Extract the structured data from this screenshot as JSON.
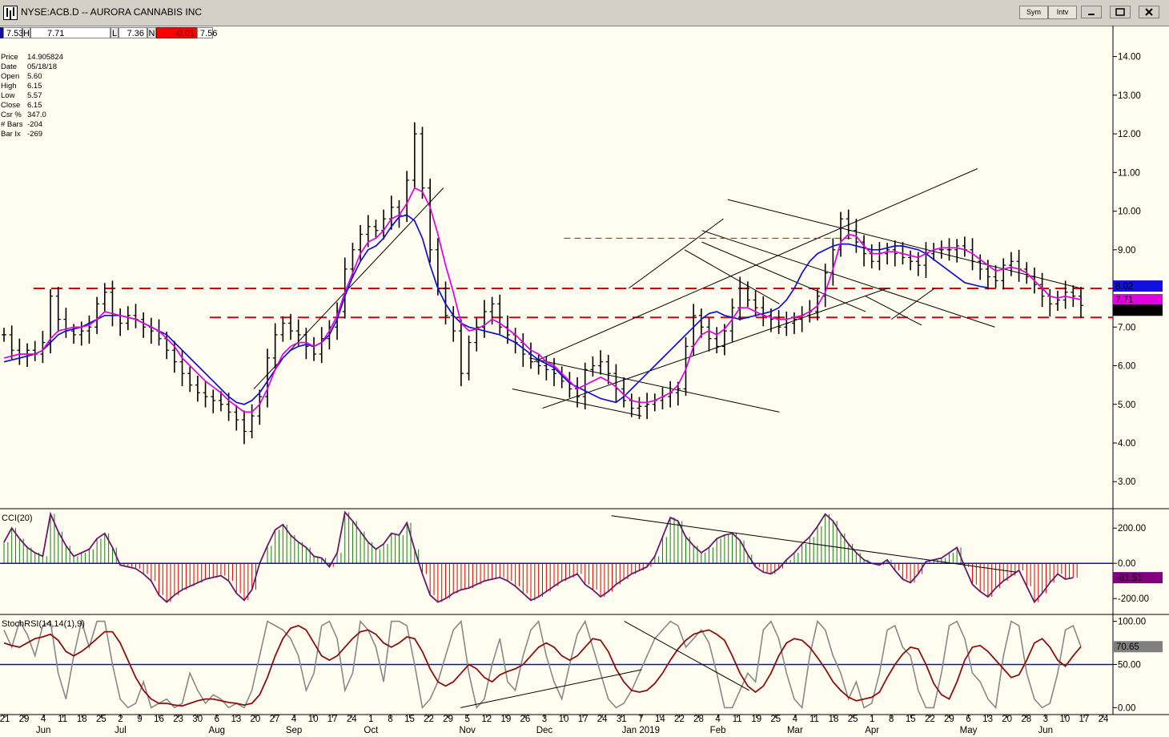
{
  "window": {
    "title": "NYSE:ACB.D -- AURORA CANNABIS INC",
    "sym_button": "Sym",
    "intv_button": "Intv"
  },
  "ohlc_bar": {
    "open": "7.53",
    "h_label": "H",
    "high": "7.71",
    "l_label": "L",
    "low": "7.36",
    "n_label": "N",
    "net": "-0.01",
    "close": "7.56"
  },
  "info_panel": [
    {
      "label": "Price",
      "value": "14.905824"
    },
    {
      "label": "Date",
      "value": "05/18/18"
    },
    {
      "label": "Open",
      "value": "5.60"
    },
    {
      "label": "High",
      "value": "6.15"
    },
    {
      "label": "Low",
      "value": "5.57"
    },
    {
      "label": "Close",
      "value": "6.15"
    },
    {
      "label": "Csr %",
      "value": "347.0"
    },
    {
      "label": "# Bars",
      "value": "-204"
    },
    {
      "label": "Bar Ix",
      "value": "-269"
    }
  ],
  "chart_data": [
    {
      "type": "bar",
      "subtype": "ohlc",
      "title": "NYSE:ACB.D -- AURORA CANNABIS INC",
      "ylim": [
        2.3,
        14.8
      ],
      "y_ticks": [
        "14.00",
        "13.00",
        "12.00",
        "11.00",
        "10.00",
        "9.00",
        "8.00",
        "7.00",
        "6.00",
        "5.00",
        "4.00",
        "3.00"
      ],
      "x_tick_labels": [
        "21",
        "29",
        "4",
        "11",
        "18",
        "25",
        "2",
        "9",
        "16",
        "23",
        "30",
        "6",
        "13",
        "20",
        "27",
        "4",
        "10",
        "17",
        "24",
        "1",
        "8",
        "15",
        "22",
        "29",
        "5",
        "12",
        "19",
        "26",
        "3",
        "10",
        "17",
        "24",
        "31",
        "7",
        "14",
        "22",
        "28",
        "4",
        "11",
        "19",
        "25",
        "4",
        "11",
        "18",
        "25",
        "1",
        "8",
        "15",
        "22",
        "29",
        "6",
        "13",
        "20",
        "28",
        "3",
        "10",
        "17",
        "24"
      ],
      "month_labels": [
        "Jun",
        "Jul",
        "Aug",
        "Sep",
        "Oct",
        "Nov",
        "Dec",
        "Jan 2019",
        "Feb",
        "Mar",
        "Apr",
        "May",
        "Jun"
      ],
      "last_price_labels": {
        "blue_ma": "8.02",
        "magenta_ma": "7.71",
        "close": "7.56"
      },
      "horizontal_levels": [
        8.0,
        7.25
      ],
      "series": [
        {
          "color": "#000000",
          "values": [
            6.8,
            6.4,
            6.3,
            6.4,
            6.3,
            6.6,
            7.8,
            7.2,
            6.9,
            6.8,
            6.9,
            7.0,
            7.6,
            7.9,
            7.3,
            7.1,
            7.3,
            7.2,
            7.0,
            6.9,
            6.7,
            6.4,
            6.1,
            5.8,
            5.5,
            5.3,
            5.2,
            5.1,
            5.0,
            4.8,
            4.6,
            4.3,
            4.7,
            5.2,
            6.2,
            6.8,
            7.1,
            6.9,
            6.8,
            6.5,
            6.3,
            6.7,
            7.0,
            7.4,
            8.5,
            9.0,
            9.4,
            9.6,
            9.5,
            9.8,
            10.1,
            9.9,
            10.8,
            12.0,
            10.6,
            9.0,
            8.0,
            7.3,
            6.9,
            5.8,
            6.6,
            7.0,
            7.4,
            7.6,
            7.0,
            6.8,
            6.6,
            6.3,
            6.1,
            6.0,
            5.9,
            5.8,
            5.6,
            5.4,
            5.2,
            5.9,
            6.0,
            6.1,
            5.8,
            5.4,
            5.1,
            4.9,
            4.95,
            5.0,
            5.1,
            5.2,
            5.3,
            5.4,
            6.5,
            7.3,
            7.0,
            6.7,
            6.5,
            6.9,
            7.5,
            8.0,
            7.7,
            7.5,
            7.3,
            7.2,
            7.0,
            7.1,
            7.2,
            7.3,
            7.4,
            7.8,
            8.4,
            9.0,
            9.8,
            9.5,
            9.2,
            8.9,
            8.7,
            8.9,
            9.0,
            8.9,
            8.8,
            8.7,
            8.6,
            8.9,
            9.0,
            9.0,
            9.0,
            9.1,
            9.0,
            8.7,
            8.5,
            8.3,
            8.2,
            8.6,
            8.7,
            8.5,
            8.3,
            8.1,
            7.8,
            7.6,
            7.7,
            7.9,
            7.8,
            7.56
          ]
        },
        {
          "color": "#e000e0",
          "values": [
            6.2,
            6.25,
            6.3,
            6.3,
            6.3,
            6.4,
            6.7,
            6.9,
            6.95,
            7.0,
            7.0,
            7.05,
            7.2,
            7.4,
            7.35,
            7.3,
            7.25,
            7.2,
            7.1,
            7.0,
            6.9,
            6.7,
            6.5,
            6.2,
            6.0,
            5.8,
            5.6,
            5.45,
            5.3,
            5.1,
            4.95,
            4.8,
            4.8,
            5.0,
            5.4,
            5.9,
            6.3,
            6.5,
            6.6,
            6.6,
            6.5,
            6.6,
            6.9,
            7.3,
            7.9,
            8.4,
            8.9,
            9.2,
            9.3,
            9.5,
            9.8,
            9.9,
            10.2,
            10.6,
            10.5,
            10.1,
            9.4,
            8.6,
            7.9,
            7.1,
            6.9,
            6.95,
            7.05,
            7.2,
            7.1,
            6.95,
            6.8,
            6.6,
            6.4,
            6.3,
            6.1,
            6.0,
            5.8,
            5.6,
            5.4,
            5.5,
            5.6,
            5.7,
            5.6,
            5.45,
            5.25,
            5.1,
            5.05,
            5.05,
            5.1,
            5.2,
            5.3,
            5.5,
            5.9,
            6.5,
            6.8,
            6.9,
            6.8,
            6.95,
            7.2,
            7.5,
            7.5,
            7.4,
            7.3,
            7.25,
            7.2,
            7.2,
            7.25,
            7.3,
            7.4,
            7.55,
            7.9,
            8.5,
            9.2,
            9.4,
            9.35,
            9.1,
            8.9,
            8.9,
            8.95,
            8.95,
            8.9,
            8.85,
            8.8,
            8.9,
            9.0,
            9.05,
            9.05,
            9.05,
            9.0,
            8.9,
            8.75,
            8.6,
            8.45,
            8.5,
            8.55,
            8.5,
            8.4,
            8.2,
            8.0,
            7.8,
            7.75,
            7.8,
            7.75,
            7.71
          ]
        },
        {
          "color": "#1010d0",
          "values": [
            6.1,
            6.15,
            6.2,
            6.25,
            6.3,
            6.4,
            6.6,
            6.8,
            6.9,
            6.95,
            7.0,
            7.1,
            7.2,
            7.3,
            7.3,
            7.3,
            7.25,
            7.2,
            7.1,
            7.0,
            6.9,
            6.8,
            6.6,
            6.4,
            6.2,
            6.0,
            5.8,
            5.6,
            5.4,
            5.2,
            5.05,
            5.0,
            5.1,
            5.3,
            5.6,
            5.9,
            6.2,
            6.4,
            6.5,
            6.55,
            6.5,
            6.6,
            6.8,
            7.2,
            7.8,
            8.3,
            8.7,
            9.0,
            9.1,
            9.3,
            9.6,
            9.85,
            9.9,
            9.75,
            9.3,
            8.6,
            8.0,
            7.6,
            7.3,
            7.1,
            7.0,
            6.95,
            6.9,
            6.85,
            6.8,
            6.7,
            6.6,
            6.45,
            6.3,
            6.15,
            6.05,
            5.95,
            5.75,
            5.55,
            5.45,
            5.35,
            5.25,
            5.15,
            5.1,
            5.05,
            5.2,
            5.4,
            5.6,
            5.8,
            6.0,
            6.2,
            6.4,
            6.6,
            6.8,
            7.0,
            7.2,
            7.35,
            7.4,
            7.3,
            7.25,
            7.2,
            7.25,
            7.3,
            7.35,
            7.4,
            7.5,
            7.7,
            8.0,
            8.4,
            8.7,
            8.9,
            9.0,
            9.1,
            9.15,
            9.15,
            9.1,
            9.05,
            9.0,
            9.0,
            9.05,
            9.1,
            9.1,
            9.05,
            9.0,
            8.9,
            8.75,
            8.6,
            8.45,
            8.3,
            8.15,
            8.1,
            8.05,
            8.02
          ]
        }
      ]
    },
    {
      "type": "area",
      "title": "CCI(20)",
      "ylim": [
        -290,
        310
      ],
      "y_ticks": [
        "200.00",
        "0.00",
        "-200.00"
      ],
      "last_value_label": "-81.51",
      "values": [
        120,
        200,
        140,
        90,
        60,
        40,
        280,
        180,
        100,
        40,
        60,
        80,
        140,
        170,
        90,
        -10,
        -20,
        -30,
        -60,
        -100,
        -180,
        -220,
        -180,
        -150,
        -130,
        -110,
        -90,
        -80,
        -70,
        -100,
        -170,
        -210,
        -150,
        0,
        100,
        190,
        220,
        160,
        120,
        90,
        40,
        30,
        -20,
        60,
        290,
        240,
        180,
        120,
        80,
        110,
        170,
        160,
        230,
        80,
        -60,
        -180,
        -220,
        -200,
        -170,
        -150,
        -140,
        -120,
        -100,
        -90,
        -80,
        -100,
        -130,
        -170,
        -210,
        -190,
        -160,
        -130,
        -100,
        -80,
        -60,
        -120,
        -150,
        -190,
        -160,
        -120,
        -90,
        -60,
        -40,
        -20,
        40,
        150,
        260,
        240,
        150,
        100,
        60,
        90,
        140,
        160,
        170,
        130,
        50,
        -20,
        -50,
        -60,
        -30,
        20,
        60,
        110,
        150,
        210,
        280,
        240,
        170,
        110,
        60,
        20,
        0,
        -10,
        20,
        -40,
        -90,
        -110,
        -60,
        10,
        20,
        30,
        60,
        90,
        -20,
        -120,
        -160,
        -190,
        -140,
        -100,
        -70,
        -40,
        -130,
        -220,
        -170,
        -110,
        -60,
        -90,
        -81.51
      ]
    },
    {
      "type": "line",
      "title": "StochRSI(14,14(1),9)",
      "ylim": [
        -8,
        108
      ],
      "y_ticks": [
        "100.00",
        "50.00",
        "0.00"
      ],
      "level": 50,
      "last_value_label": "70.65",
      "series": [
        {
          "color": "#888888",
          "values": [
            90,
            70,
            100,
            85,
            60,
            95,
            100,
            40,
            10,
            60,
            100,
            70,
            100,
            100,
            50,
            10,
            0,
            5,
            30,
            0,
            5,
            10,
            0,
            5,
            40,
            20,
            5,
            15,
            10,
            0,
            5,
            0,
            20,
            60,
            100,
            95,
            90,
            80,
            60,
            20,
            40,
            95,
            100,
            80,
            20,
            40,
            100,
            90,
            70,
            30,
            100,
            100,
            95,
            50,
            0,
            10,
            30,
            60,
            90,
            100,
            40,
            0,
            10,
            50,
            80,
            30,
            20,
            60,
            90,
            100,
            60,
            30,
            10,
            50,
            85,
            100,
            70,
            40,
            10,
            0,
            5,
            20,
            40,
            60,
            80,
            90,
            100,
            95,
            70,
            80,
            90,
            75,
            40,
            0,
            0,
            20,
            40,
            30,
            90,
            100,
            80,
            40,
            10,
            0,
            60,
            100,
            90,
            60,
            40,
            10,
            30,
            0,
            5,
            40,
            90,
            95,
            70,
            60,
            20,
            0,
            0,
            40,
            95,
            100,
            80,
            40,
            30,
            10,
            0,
            60,
            100,
            95,
            40,
            10,
            0,
            5,
            40,
            90,
            95,
            70.65
          ]
        },
        {
          "color": "#8b1010",
          "values": [
            75,
            72,
            70,
            75,
            80,
            82,
            85,
            78,
            65,
            60,
            65,
            72,
            80,
            88,
            88,
            75,
            55,
            35,
            20,
            10,
            5,
            5,
            3,
            2,
            5,
            8,
            10,
            10,
            8,
            6,
            5,
            3,
            5,
            15,
            35,
            60,
            80,
            92,
            95,
            90,
            75,
            60,
            55,
            60,
            70,
            80,
            88,
            90,
            85,
            75,
            70,
            75,
            82,
            80,
            65,
            45,
            30,
            25,
            30,
            40,
            50,
            45,
            35,
            30,
            38,
            42,
            45,
            50,
            60,
            70,
            75,
            70,
            60,
            55,
            60,
            70,
            80,
            78,
            65,
            45,
            30,
            20,
            18,
            20,
            28,
            40,
            55,
            68,
            78,
            85,
            88,
            90,
            85,
            78,
            60,
            40,
            25,
            18,
            25,
            40,
            60,
            75,
            80,
            78,
            70,
            58,
            45,
            30,
            20,
            12,
            8,
            10,
            12,
            18,
            35,
            50,
            62,
            70,
            68,
            50,
            28,
            15,
            10,
            30,
            55,
            70,
            72,
            65,
            55,
            45,
            35,
            38,
            55,
            75,
            80,
            70,
            55,
            48,
            60,
            70.65
          ]
        }
      ]
    }
  ]
}
